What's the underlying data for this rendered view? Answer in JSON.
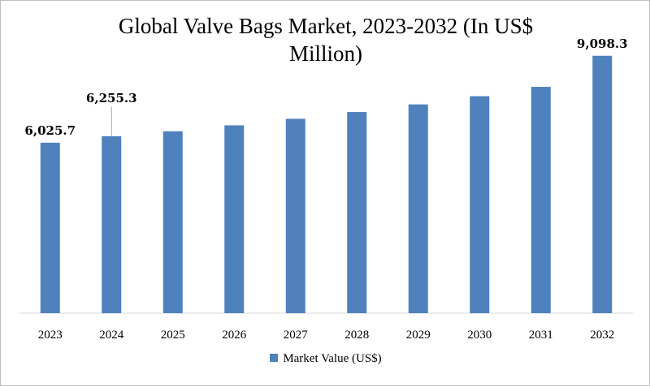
{
  "chart_data": {
    "type": "bar",
    "title_line1": "Global Valve Bags Market, 2023-2032 (In US$",
    "title_line2": "Million)",
    "categories": [
      "2023",
      "2024",
      "2025",
      "2026",
      "2027",
      "2028",
      "2029",
      "2030",
      "2031",
      "2032"
    ],
    "series": [
      {
        "name": "Market Value (US$)",
        "values": [
          6025.7,
          6255.3,
          6430,
          6640,
          6870,
          7110,
          7380,
          7670,
          8000,
          9098.3
        ],
        "color": "#4f81bd"
      }
    ],
    "data_labels": [
      {
        "index": 0,
        "text": "6,025.7"
      },
      {
        "index": 1,
        "text": "6,255.3"
      },
      {
        "index": 9,
        "text": "9,098.3"
      }
    ],
    "ylim": [
      0,
      10000
    ],
    "grid": false,
    "legend_position": "bottom"
  }
}
